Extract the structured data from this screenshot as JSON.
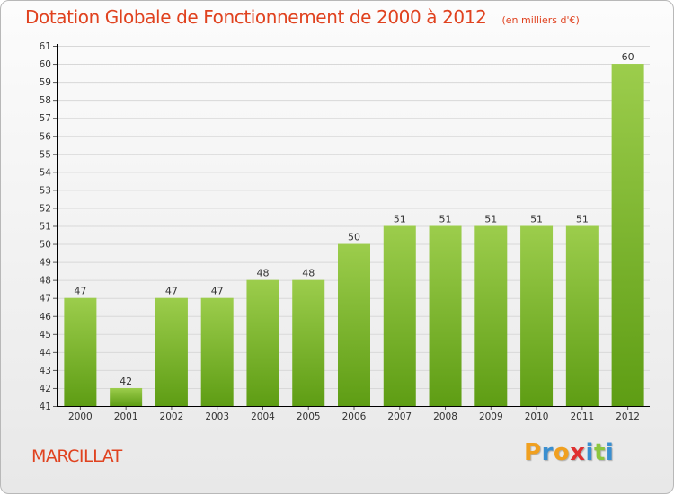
{
  "chart_data": {
    "type": "bar",
    "title": "Dotation Globale de Fonctionnement de 2000 à 2012",
    "subtitle": "(en milliers d'€)",
    "categories": [
      "2000",
      "2001",
      "2002",
      "2003",
      "2004",
      "2005",
      "2006",
      "2007",
      "2008",
      "2009",
      "2010",
      "2011",
      "2012"
    ],
    "values": [
      47,
      42,
      47,
      47,
      48,
      48,
      50,
      51,
      51,
      51,
      51,
      51,
      60
    ],
    "data_labels": [
      "47",
      "42",
      "47",
      "47",
      "48",
      "48",
      "50",
      "51",
      "51",
      "51",
      "51",
      "51",
      "60"
    ],
    "ylim": [
      41,
      61
    ],
    "yticks": [
      41,
      42,
      43,
      44,
      45,
      46,
      47,
      48,
      49,
      50,
      51,
      52,
      53,
      54,
      55,
      56,
      57,
      58,
      59,
      60,
      61
    ],
    "grid": true,
    "bar_color_top": "#9ccd4c",
    "bar_color_bottom": "#5e9d14",
    "xlabel": "",
    "ylabel": ""
  },
  "commune": "MARCILLAT",
  "logo": {
    "letters": [
      "P",
      "r",
      "o",
      "x",
      "i",
      "t",
      "i"
    ],
    "colors": [
      "#f0a020",
      "#3a8fd0",
      "#f0a020",
      "#e03030",
      "#3a8fd0",
      "#8cc63f",
      "#3a8fd0"
    ]
  },
  "colors": {
    "title": "#e0421f",
    "axis": "#000000",
    "grid": "#d8d8d8"
  }
}
